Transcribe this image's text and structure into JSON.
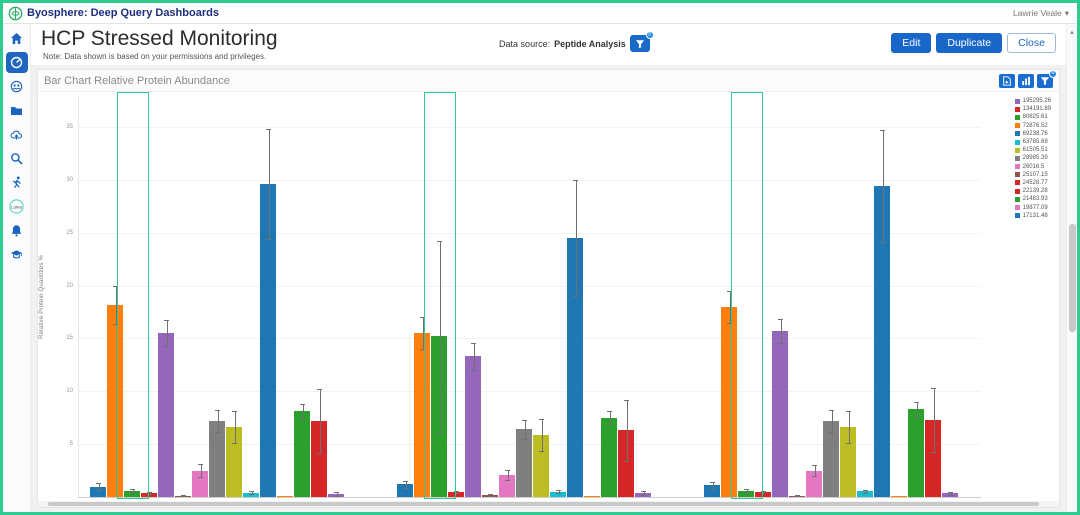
{
  "header": {
    "app_title": "Byosphere: Deep Query Dashboards",
    "user_name": "Lawrie Veale",
    "logo_icon": "byosphere-logo-icon",
    "accent_green": "#2ecb90",
    "brand_blue": "#1d2f7c"
  },
  "sidebar": {
    "items": [
      {
        "icon": "home-icon",
        "selected": false
      },
      {
        "icon": "dashboard-gauge-icon",
        "selected": true
      },
      {
        "icon": "community-globe-icon",
        "selected": false
      },
      {
        "icon": "folder-icon",
        "selected": false
      },
      {
        "icon": "cloud-upload-icon",
        "selected": false
      },
      {
        "icon": "search-icon",
        "selected": false
      },
      {
        "icon": "activity-runner-icon",
        "selected": false
      },
      {
        "icon": "luma-badge",
        "selected": false,
        "label": "Luma"
      },
      {
        "icon": "notifications-bell-icon",
        "selected": false
      },
      {
        "icon": "education-cap-icon",
        "selected": false
      }
    ]
  },
  "page": {
    "title": "HCP Stressed Monitoring",
    "note": "Note: Data shown is based on your permissions and privileges.",
    "data_source_label": "Data source:",
    "data_source_value": "Peptide Analysis",
    "filter_icon": "filter-funnel-icon",
    "filter_badge": "0",
    "buttons": {
      "edit": "Edit",
      "duplicate": "Duplicate",
      "close": "Close"
    }
  },
  "panel": {
    "title": "Bar Chart Relative Protein Abundance",
    "tools": [
      {
        "icon": "export-chart-icon"
      },
      {
        "icon": "bar-chart-settings-icon"
      },
      {
        "icon": "filter-funnel-icon",
        "badge": "0"
      }
    ]
  },
  "chart_data": {
    "type": "bar",
    "title": "Bar Chart Relative Protein Abundance",
    "xlabel": "",
    "ylabel": "Relative Protein Quantities %",
    "ylim": [
      0,
      38
    ],
    "yticks": [
      5,
      10,
      15,
      20,
      25,
      30,
      35
    ],
    "grid": true,
    "legend_position": "top-right",
    "categories": [
      "",
      "",
      ""
    ],
    "series": [
      {
        "color": "#1f77b4",
        "values": [
          1.0,
          1.2,
          1.1
        ],
        "errors": [
          0.3,
          0.3,
          0.3
        ]
      },
      {
        "color": "#ff7f0e",
        "values": [
          18.2,
          15.5,
          18.0
        ],
        "errors": [
          1.8,
          1.5,
          1.5
        ]
      },
      {
        "color": "#2ca02c",
        "values": [
          0.6,
          15.2,
          0.6
        ],
        "errors": [
          0.2,
          9.0,
          0.2
        ]
      },
      {
        "color": "#d62728",
        "values": [
          0.4,
          0.5,
          0.45
        ],
        "errors": [
          0.1,
          0.1,
          0.1
        ]
      },
      {
        "color": "#9467bd",
        "values": [
          15.5,
          13.3,
          15.7
        ],
        "errors": [
          1.2,
          1.3,
          1.1
        ]
      },
      {
        "color": "#8c564b",
        "values": [
          0.15,
          0.2,
          0.15
        ],
        "errors": [
          0.05,
          0.05,
          0.05
        ]
      },
      {
        "color": "#e377c2",
        "values": [
          2.5,
          2.1,
          2.5
        ],
        "errors": [
          0.6,
          0.5,
          0.5
        ]
      },
      {
        "color": "#7f7f7f",
        "values": [
          7.2,
          6.4,
          7.2
        ],
        "errors": [
          1.0,
          0.9,
          1.0
        ]
      },
      {
        "color": "#bcbd22",
        "values": [
          6.6,
          5.9,
          6.6
        ],
        "errors": [
          1.5,
          1.5,
          1.5
        ]
      },
      {
        "color": "#17becf",
        "values": [
          0.4,
          0.5,
          0.55
        ],
        "errors": [
          0.15,
          0.15,
          0.15
        ]
      },
      {
        "color": "#1f77b4",
        "values": [
          29.6,
          24.5,
          29.4
        ],
        "errors": [
          5.2,
          5.5,
          5.3
        ]
      },
      {
        "color": "#ff7f0e",
        "values": [
          0.07,
          0.1,
          0.08
        ],
        "errors": [
          0.02,
          0.02,
          0.02
        ]
      },
      {
        "color": "#2ca02c",
        "values": [
          8.1,
          7.5,
          8.3
        ],
        "errors": [
          0.7,
          0.6,
          0.7
        ]
      },
      {
        "color": "#d62728",
        "values": [
          7.2,
          6.3,
          7.3
        ],
        "errors": [
          3.0,
          2.9,
          3.0
        ]
      },
      {
        "color": "#9467bd",
        "values": [
          0.3,
          0.4,
          0.35
        ],
        "errors": [
          0.15,
          0.2,
          0.15
        ]
      }
    ],
    "legend": [
      {
        "label": "195295.26",
        "color": "#9467bd"
      },
      {
        "label": "134191.89",
        "color": "#d62728"
      },
      {
        "label": "80625.61",
        "color": "#2ca02c"
      },
      {
        "label": "72876.52",
        "color": "#ff7f0e"
      },
      {
        "label": "69238.76",
        "color": "#1f77b4"
      },
      {
        "label": "63785.69",
        "color": "#17becf"
      },
      {
        "label": "61505.51",
        "color": "#bcbd22"
      },
      {
        "label": "28985.39",
        "color": "#7f7f7f"
      },
      {
        "label": "26016.5",
        "color": "#e377c2"
      },
      {
        "label": "25107.15",
        "color": "#8c564b"
      },
      {
        "label": "24528.77",
        "color": "#d62728"
      },
      {
        "label": "22139.28",
        "color": "#d62728"
      },
      {
        "label": "21483.93",
        "color": "#2ca02c"
      },
      {
        "label": "19877.09",
        "color": "#e377c2"
      },
      {
        "label": "17131.48",
        "color": "#1f77b4"
      }
    ],
    "highlights": {
      "per_group": true,
      "color": "#2ecb90",
      "note": "green selection rectangle over bars 2-4 of each group, full plot height"
    }
  }
}
